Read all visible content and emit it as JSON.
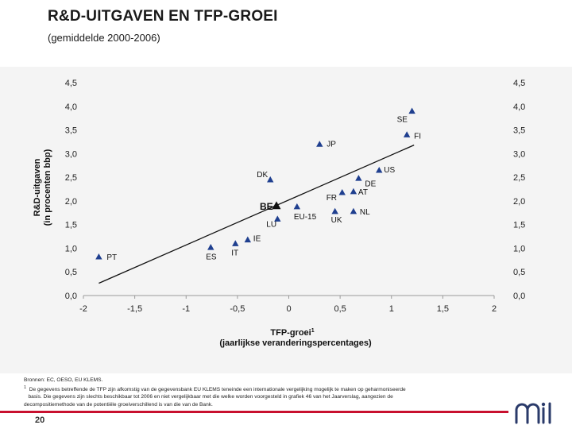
{
  "header": {
    "title": "R&D-UITGAVEN EN TFP-GROEI",
    "subtitle": "(gemiddelde 2000-2006)"
  },
  "chart_data": {
    "type": "scatter",
    "xlabel_line1": "TFP-groei",
    "xlabel_sup": "1",
    "xlabel_line2": "(jaarlijkse veranderingspercentages)",
    "ylabel_line1": "R&D-uitgaven",
    "ylabel_line2": "(in procenten bbp)",
    "xlim": [
      -2,
      2
    ],
    "ylim": [
      0,
      4.5
    ],
    "x_ticks": [
      -2,
      -1.5,
      -1,
      -0.5,
      0,
      0.5,
      1,
      1.5,
      2
    ],
    "x_tick_labels": [
      "-2",
      "-1,5",
      "-1",
      "-0,5",
      "0",
      "0,5",
      "1",
      "1,5",
      "2"
    ],
    "y_ticks": [
      0,
      0.5,
      1,
      1.5,
      2,
      2.5,
      3,
      3.5,
      4,
      4.5
    ],
    "y_tick_labels": [
      "0,0",
      "0,5",
      "1,0",
      "1,5",
      "2,0",
      "2,5",
      "3,0",
      "3,5",
      "4,0",
      "4,5"
    ],
    "points": [
      {
        "label": "SE",
        "x": 1.2,
        "y": 3.9,
        "highlight": false
      },
      {
        "label": "FI",
        "x": 1.15,
        "y": 3.4,
        "highlight": false
      },
      {
        "label": "JP",
        "x": 0.3,
        "y": 3.2,
        "highlight": false
      },
      {
        "label": "US",
        "x": 0.88,
        "y": 2.65,
        "highlight": false
      },
      {
        "label": "DK",
        "x": -0.18,
        "y": 2.45,
        "highlight": false
      },
      {
        "label": "DE",
        "x": 0.68,
        "y": 2.48,
        "highlight": false
      },
      {
        "label": "FR",
        "x": 0.52,
        "y": 2.18,
        "highlight": false
      },
      {
        "label": "AT",
        "x": 0.63,
        "y": 2.2,
        "highlight": false
      },
      {
        "label": "BE",
        "x": -0.12,
        "y": 1.9,
        "highlight": true
      },
      {
        "label": "EU-15",
        "x": 0.08,
        "y": 1.88,
        "highlight": false
      },
      {
        "label": "NL",
        "x": 0.63,
        "y": 1.78,
        "highlight": false
      },
      {
        "label": "UK",
        "x": 0.45,
        "y": 1.78,
        "highlight": false
      },
      {
        "label": "LU",
        "x": -0.11,
        "y": 1.62,
        "highlight": false
      },
      {
        "label": "IE",
        "x": -0.4,
        "y": 1.18,
        "highlight": false
      },
      {
        "label": "IT",
        "x": -0.52,
        "y": 1.1,
        "highlight": false
      },
      {
        "label": "ES",
        "x": -0.76,
        "y": 1.02,
        "highlight": false
      },
      {
        "label": "PT",
        "x": -1.85,
        "y": 0.82,
        "highlight": false
      }
    ],
    "trendline": {
      "x": [
        -1.85,
        1.22
      ],
      "y": [
        0.26,
        3.18
      ]
    }
  },
  "notes": {
    "source": "Bronnen: EC, OESO, EU KLEMS.",
    "footnote_mark": "1",
    "footnote_line1": "De gegevens betreffende de TFP zijn afkomstig van de gegevensbank EU KLEMS teneinde een internationale vergelijking mogelijk te maken op geharmoniseerde",
    "footnote_line2": "basis. Die gegevens zijn slechts beschikbaar tot 2006 en niet vergelijkbaar met die welke worden voorgesteld in grafiek 46 van het Jaarverslag, aangezien de",
    "footnote_line3": "decompositiemethode                    van de potentiële groeiverschillend is van die van de Bank."
  },
  "footer": {
    "page_number": "20"
  },
  "colors": {
    "marker": "#1f3f8f",
    "accent_red": "#c8102e"
  }
}
